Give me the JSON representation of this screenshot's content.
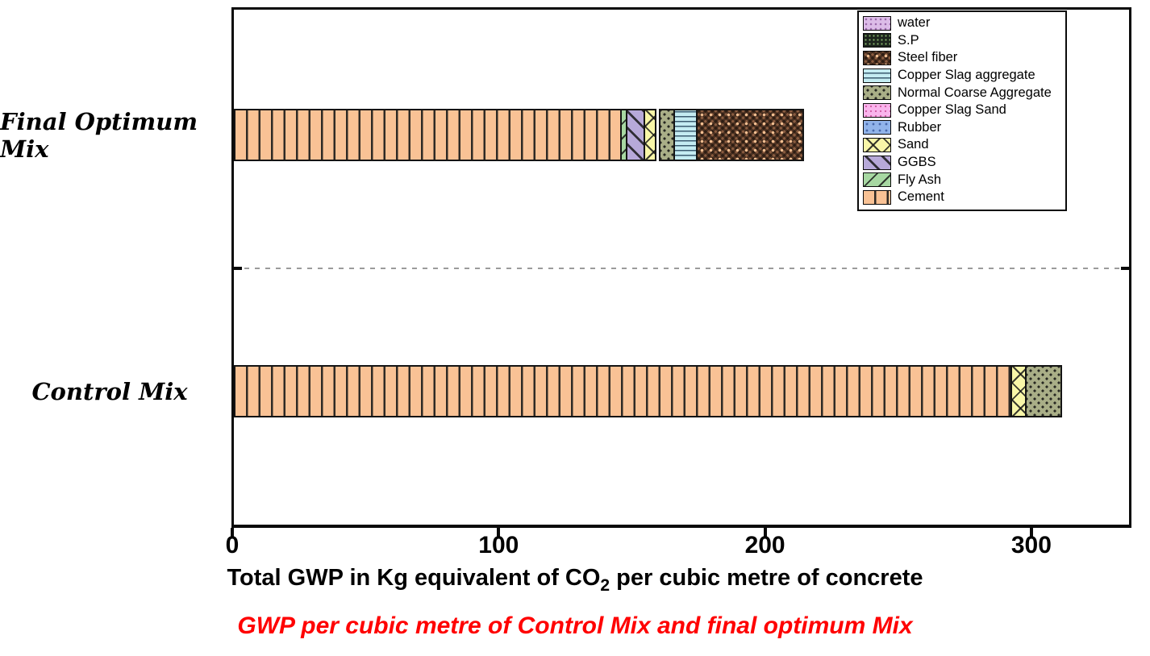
{
  "caption": "GWP per cubic metre of Control Mix and final optimum Mix",
  "axis": {
    "title_before_sub": "Total GWP in Kg equivalent of CO",
    "title_sub": "2",
    "title_after_sub": " per cubic metre of concrete",
    "x_ticks": [
      {
        "label": "0",
        "value": 0
      },
      {
        "label": "100",
        "value": 100
      },
      {
        "label": "200",
        "value": 200
      },
      {
        "label": "300",
        "value": 300
      }
    ]
  },
  "colors": {
    "cement": "#f9c295",
    "fly-ash": "#a7d8a2",
    "ggbs": "#b7a9d9",
    "sand": "#f8f6a8",
    "normal-coarse-aggregate": "#a9ae87",
    "copper-slag-aggregate": "#c4ecf2",
    "steel-fiber": "#8a5c40",
    "water": "#dcbce8",
    "sp": "#1c241c",
    "copper-slag-sand": "#f9b4ec",
    "rubber": "#91b4ea",
    "gap": "#ffffff",
    "caption_red": "#ff0000",
    "axis_black": "#0a0a0a"
  },
  "legend": {
    "items": [
      {
        "key": "water",
        "label": "water"
      },
      {
        "key": "sp",
        "label": "S.P"
      },
      {
        "key": "steel-fiber",
        "label": "Steel fiber"
      },
      {
        "key": "copper-slag-aggregate",
        "label": "Copper Slag aggregate"
      },
      {
        "key": "normal-coarse-aggregate",
        "label": "Normal Coarse Aggregate"
      },
      {
        "key": "copper-slag-sand",
        "label": "Copper Slag Sand"
      },
      {
        "key": "rubber",
        "label": "Rubber"
      },
      {
        "key": "sand",
        "label": "Sand"
      },
      {
        "key": "ggbs",
        "label": "GGBS"
      },
      {
        "key": "fly-ash",
        "label": "Fly Ash"
      },
      {
        "key": "cement",
        "label": "Cement"
      }
    ]
  },
  "bars": [
    {
      "category": "Final Optimum Mix",
      "segments": [
        {
          "key": "cement",
          "value": 145.5
        },
        {
          "key": "fly-ash",
          "value": 2.7
        },
        {
          "key": "ggbs",
          "value": 7.2
        },
        {
          "key": "sand",
          "value": 4.8
        },
        {
          "key": "gap",
          "value": 1.5
        },
        {
          "key": "normal-coarse-aggregate",
          "value": 6.0
        },
        {
          "key": "copper-slag-aggregate",
          "value": 9.1
        },
        {
          "key": "steel-fiber",
          "value": 40.5
        }
      ]
    },
    {
      "category": "Control Mix",
      "segments": [
        {
          "key": "cement",
          "value": 292.3
        },
        {
          "key": "sand",
          "value": 6.0
        },
        {
          "key": "normal-coarse-aggregate",
          "value": 13.9
        }
      ]
    }
  ],
  "chart_data": {
    "type": "bar",
    "orientation": "horizontal",
    "stacked": true,
    "categories": [
      "Final Optimum Mix",
      "Control Mix"
    ],
    "xlabel": "Total GWP in Kg equivalent of CO2 per cubic metre of concrete",
    "caption": "GWP per cubic metre of Control Mix and final optimum Mix",
    "xlim": [
      0,
      336
    ],
    "x_ticks": [
      0,
      100,
      200,
      300
    ],
    "grid": false,
    "legend_position": "top-right",
    "series": [
      {
        "name": "Cement",
        "values": [
          145.5,
          292.3
        ]
      },
      {
        "name": "Fly Ash",
        "values": [
          2.7,
          0
        ]
      },
      {
        "name": "GGBS",
        "values": [
          7.2,
          0
        ]
      },
      {
        "name": "Sand",
        "values": [
          4.8,
          6.0
        ]
      },
      {
        "name": "Rubber",
        "values": [
          0,
          0
        ]
      },
      {
        "name": "Copper Slag Sand",
        "values": [
          0,
          0
        ]
      },
      {
        "name": "Normal Coarse Aggregate",
        "values": [
          6.0,
          13.9
        ]
      },
      {
        "name": "Copper Slag aggregate",
        "values": [
          9.1,
          0
        ]
      },
      {
        "name": "Steel fiber",
        "values": [
          40.5,
          0
        ]
      },
      {
        "name": "S.P",
        "values": [
          0,
          0
        ]
      },
      {
        "name": "water",
        "values": [
          0,
          0
        ]
      }
    ],
    "approx_totals": [
      217,
      312
    ],
    "note": "A thin white gap (~1.5 units) is visible between Sand and Normal Coarse Aggregate segments in the Final Optimum Mix bar; category rows are separated by a gray dashed line."
  }
}
